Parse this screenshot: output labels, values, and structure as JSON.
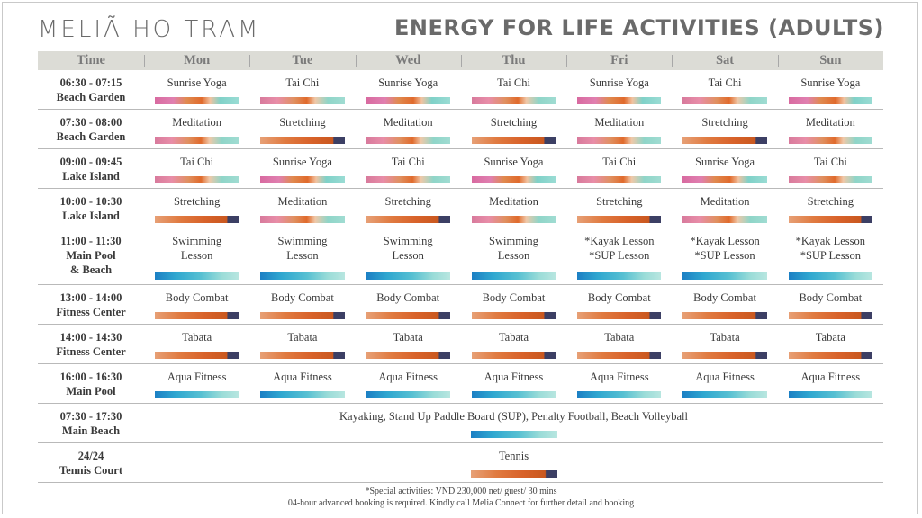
{
  "brand": "MELIÃ HO TRAM",
  "title": "ENERGY FOR LIFE ACTIVITIES (ADULTS)",
  "header": [
    "Time",
    "Mon",
    "Tue",
    "Wed",
    "Thu",
    "Fri",
    "Sat",
    "Sun"
  ],
  "rows": [
    {
      "time": [
        "06:30 - 07:15",
        "Beach Garden"
      ],
      "cells": [
        {
          "lines": [
            "Sunrise Yoga"
          ],
          "bar": "yoga"
        },
        {
          "lines": [
            "Tai Chi"
          ],
          "bar": "tension"
        },
        {
          "lines": [
            "Sunrise Yoga"
          ],
          "bar": "yoga"
        },
        {
          "lines": [
            "Tai Chi"
          ],
          "bar": "tension"
        },
        {
          "lines": [
            "Sunrise Yoga"
          ],
          "bar": "yoga"
        },
        {
          "lines": [
            "Tai Chi"
          ],
          "bar": "tension"
        },
        {
          "lines": [
            "Sunrise Yoga"
          ],
          "bar": "yoga"
        }
      ]
    },
    {
      "time": [
        "07:30 - 08:00",
        "Beach Garden"
      ],
      "cells": [
        {
          "lines": [
            "Meditation"
          ],
          "bar": "tension"
        },
        {
          "lines": [
            "Stretching"
          ],
          "bar": "orange"
        },
        {
          "lines": [
            "Meditation"
          ],
          "bar": "tension"
        },
        {
          "lines": [
            "Stretching"
          ],
          "bar": "orange"
        },
        {
          "lines": [
            "Meditation"
          ],
          "bar": "tension"
        },
        {
          "lines": [
            "Stretching"
          ],
          "bar": "orange"
        },
        {
          "lines": [
            "Meditation"
          ],
          "bar": "tension"
        }
      ]
    },
    {
      "time": [
        "09:00 - 09:45",
        "Lake Island"
      ],
      "cells": [
        {
          "lines": [
            "Tai Chi"
          ],
          "bar": "tension"
        },
        {
          "lines": [
            "Sunrise Yoga"
          ],
          "bar": "yoga"
        },
        {
          "lines": [
            "Tai Chi"
          ],
          "bar": "tension"
        },
        {
          "lines": [
            "Sunrise Yoga"
          ],
          "bar": "yoga"
        },
        {
          "lines": [
            "Tai Chi"
          ],
          "bar": "tension"
        },
        {
          "lines": [
            "Sunrise Yoga"
          ],
          "bar": "yoga"
        },
        {
          "lines": [
            "Tai Chi"
          ],
          "bar": "tension"
        }
      ]
    },
    {
      "time": [
        "10:00 - 10:30",
        "Lake Island"
      ],
      "cells": [
        {
          "lines": [
            "Stretching"
          ],
          "bar": "orange"
        },
        {
          "lines": [
            "Meditation"
          ],
          "bar": "tension"
        },
        {
          "lines": [
            "Stretching"
          ],
          "bar": "orange"
        },
        {
          "lines": [
            "Meditation"
          ],
          "bar": "tension"
        },
        {
          "lines": [
            "Stretching"
          ],
          "bar": "orange"
        },
        {
          "lines": [
            "Meditation"
          ],
          "bar": "tension"
        },
        {
          "lines": [
            "Stretching"
          ],
          "bar": "orange"
        }
      ]
    },
    {
      "time": [
        "11:00 - 11:30",
        "Main Pool",
        "& Beach"
      ],
      "cells": [
        {
          "lines": [
            "Swimming",
            "Lesson"
          ],
          "bar": "aqua"
        },
        {
          "lines": [
            "Swimming",
            "Lesson"
          ],
          "bar": "aqua"
        },
        {
          "lines": [
            "Swimming",
            "Lesson"
          ],
          "bar": "aqua"
        },
        {
          "lines": [
            "Swimming",
            "Lesson"
          ],
          "bar": "aqua"
        },
        {
          "lines": [
            "*Kayak Lesson",
            "*SUP Lesson"
          ],
          "bar": "aqua"
        },
        {
          "lines": [
            "*Kayak Lesson",
            "*SUP Lesson"
          ],
          "bar": "aqua"
        },
        {
          "lines": [
            "*Kayak Lesson",
            "*SUP Lesson"
          ],
          "bar": "aqua"
        }
      ]
    },
    {
      "time": [
        "13:00 - 14:00",
        "Fitness Center"
      ],
      "cells": [
        {
          "lines": [
            "Body Combat"
          ],
          "bar": "orange"
        },
        {
          "lines": [
            "Body Combat"
          ],
          "bar": "orange"
        },
        {
          "lines": [
            "Body Combat"
          ],
          "bar": "orange"
        },
        {
          "lines": [
            "Body Combat"
          ],
          "bar": "orange"
        },
        {
          "lines": [
            "Body Combat"
          ],
          "bar": "orange"
        },
        {
          "lines": [
            "Body Combat"
          ],
          "bar": "orange"
        },
        {
          "lines": [
            "Body Combat"
          ],
          "bar": "orange"
        }
      ]
    },
    {
      "time": [
        "14:00 - 14:30",
        "Fitness Center"
      ],
      "cells": [
        {
          "lines": [
            "Tabata"
          ],
          "bar": "orange"
        },
        {
          "lines": [
            "Tabata"
          ],
          "bar": "orange"
        },
        {
          "lines": [
            "Tabata"
          ],
          "bar": "orange"
        },
        {
          "lines": [
            "Tabata"
          ],
          "bar": "orange"
        },
        {
          "lines": [
            "Tabata"
          ],
          "bar": "orange"
        },
        {
          "lines": [
            "Tabata"
          ],
          "bar": "orange"
        },
        {
          "lines": [
            "Tabata"
          ],
          "bar": "orange"
        }
      ]
    },
    {
      "time": [
        "16:00 - 16:30",
        "Main Pool"
      ],
      "cells": [
        {
          "lines": [
            "Aqua Fitness"
          ],
          "bar": "aqua"
        },
        {
          "lines": [
            "Aqua Fitness"
          ],
          "bar": "aqua"
        },
        {
          "lines": [
            "Aqua Fitness"
          ],
          "bar": "aqua"
        },
        {
          "lines": [
            "Aqua Fitness"
          ],
          "bar": "aqua"
        },
        {
          "lines": [
            "Aqua Fitness"
          ],
          "bar": "aqua"
        },
        {
          "lines": [
            "Aqua Fitness"
          ],
          "bar": "aqua"
        },
        {
          "lines": [
            "Aqua Fitness"
          ],
          "bar": "aqua"
        }
      ]
    },
    {
      "time": [
        "07:30 - 17:30",
        "Main Beach"
      ],
      "span": {
        "lines": [
          "Kayaking, Stand Up Paddle Board (SUP), Penalty Football, Beach Volleyball"
        ],
        "bar": "aqua"
      }
    },
    {
      "time": [
        "24/24",
        "Tennis Court"
      ],
      "span": {
        "lines": [
          "Tennis"
        ],
        "bar": "orange"
      }
    }
  ],
  "footer": {
    "line1": "*Special activities: VND 230,000 net/ guest/ 30 mins",
    "line2": "04-hour advanced booking is required. Kindly call Melia Connect for further detail and booking"
  }
}
